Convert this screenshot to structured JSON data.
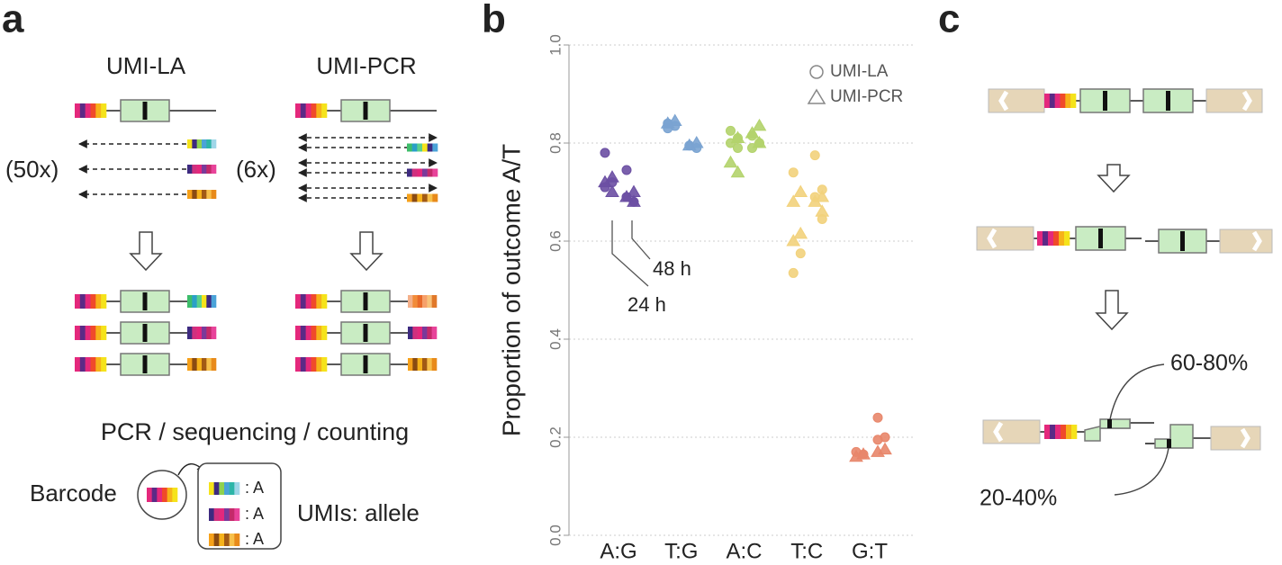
{
  "panels": {
    "a": {
      "label": "a",
      "titles": [
        "UMI-LA",
        "UMI-PCR"
      ],
      "multipliers": [
        "(50x)",
        "(6x)"
      ],
      "caption": "PCR / sequencing / counting",
      "barcode_label": "Barcode",
      "allele_labels": [
        ": A",
        ": A",
        ": A"
      ],
      "umi_label": "UMIs: allele"
    },
    "b": {
      "label": "b"
    },
    "c": {
      "label": "c",
      "high": "60-80%",
      "low": "20-40%"
    }
  },
  "chart_data": {
    "type": "strip",
    "ylabel": "Proportion of outcome A/T",
    "categories": [
      "A:G",
      "T:G",
      "A:C",
      "T:C",
      "G:T"
    ],
    "colors": [
      "#6b4fa3",
      "#7aa3d1",
      "#b3d36b",
      "#f2d27c",
      "#e8866a"
    ],
    "series": [
      {
        "name": "UMI-LA",
        "marker": "circle",
        "values": [
          [
            [
              0.78,
              0.72,
              0.71
            ],
            [
              0.745,
              0.68,
              0.69
            ]
          ],
          [
            [
              0.84,
              0.835,
              0.83
            ],
            [
              0.795,
              0.79
            ]
          ],
          [
            [
              0.825,
              0.81,
              0.8,
              0.79
            ],
            [
              0.815,
              0.8,
              0.79
            ]
          ],
          [
            [
              0.74,
              0.575,
              0.535
            ],
            [
              0.775,
              0.705,
              0.69,
              0.645
            ]
          ],
          [
            [
              0.17,
              0.165
            ],
            [
              0.24,
              0.2,
              0.195
            ]
          ]
        ]
      },
      {
        "name": "UMI-PCR",
        "marker": "triangle",
        "values": [
          [
            [
              0.73,
              0.72,
              0.7
            ],
            [
              0.7,
              0.69,
              0.68
            ]
          ],
          [
            [
              0.845,
              0.84
            ],
            [
              0.8,
              0.795
            ]
          ],
          [
            [
              0.81,
              0.76,
              0.74
            ],
            [
              0.835,
              0.82,
              0.8
            ]
          ],
          [
            [
              0.7,
              0.68,
              0.615,
              0.6
            ],
            [
              0.69,
              0.68,
              0.66
            ]
          ],
          [
            [
              0.165,
              0.16
            ],
            [
              0.175,
              0.17
            ]
          ]
        ]
      }
    ],
    "annotations": [
      "24 h",
      "48 h"
    ],
    "ylim": [
      0,
      1
    ],
    "yticks": [
      {
        "value": 0,
        "label": "0.0"
      },
      0.2,
      0.4,
      0.6,
      0.8,
      {
        "value": 1,
        "label": "1.0"
      }
    ],
    "grid": true
  }
}
